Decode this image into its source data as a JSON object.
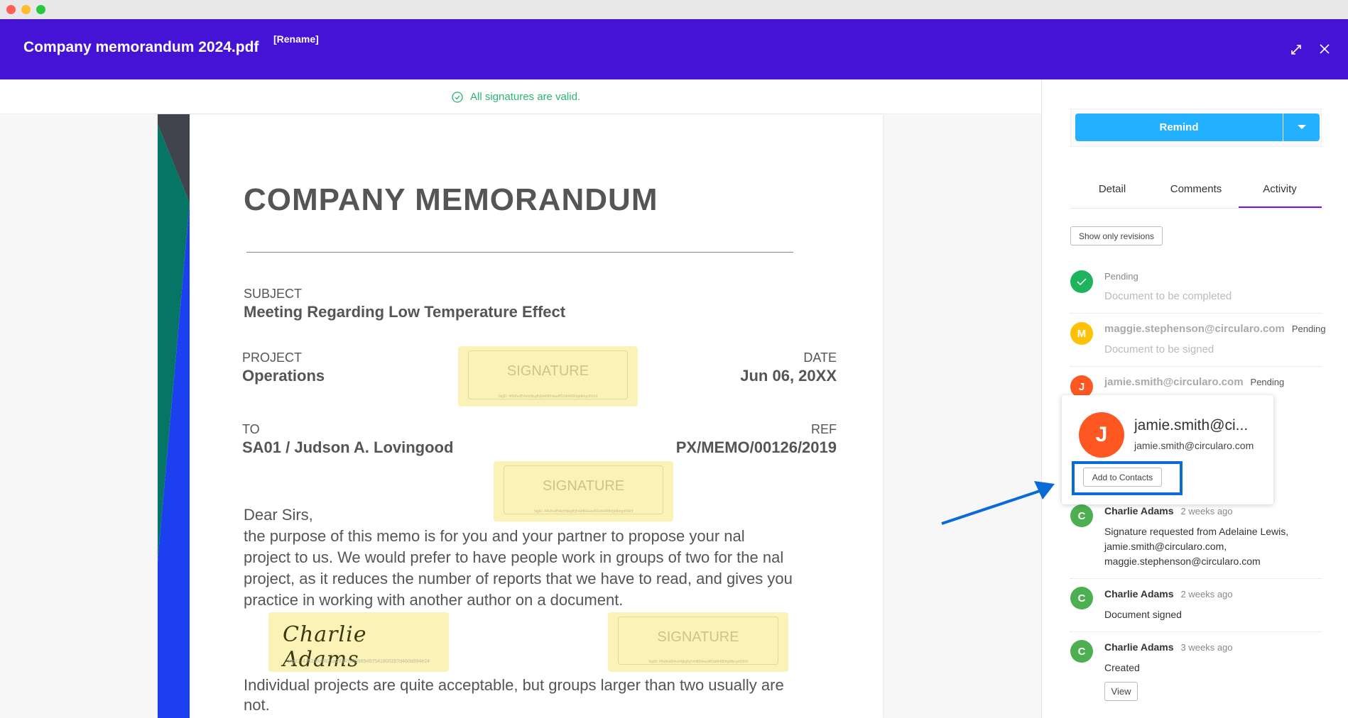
{
  "window": {
    "controls": [
      "close",
      "minimize",
      "maximize"
    ]
  },
  "header": {
    "title": "Company memorandum 2024.pdf",
    "rename_label": "[Rename]",
    "expand_icon": "expand-icon",
    "close_icon": "close-icon",
    "color": "#4513d6"
  },
  "status": {
    "text": "All signatures are valid.",
    "icon": "check-circle-icon",
    "color": "#2bb673"
  },
  "document": {
    "heading": "COMPANY MEMORANDUM",
    "subject_label": "SUBJECT",
    "subject": "Meeting Regarding Low Temperature Effect",
    "project_label": "PROJECT",
    "project": "Operations",
    "date_label": "DATE",
    "date": "Jun 06, 20XX",
    "to_label": "TO",
    "to": "SA01 / Judson A. Lovingood",
    "ref_label": "REF",
    "ref": "PX/MEMO/00126/2019",
    "greeting": "Dear Sirs,",
    "body_lines": [
      "the purpose of this memo is for you and your partner to propose your nal",
      "project to us. We would prefer to have people work in groups of two for the nal",
      "project, as it reduces the number of reports that we have to read, and gives you",
      "practice in working with another author on a document."
    ],
    "body2_lines": [
      "Individual projects are quite acceptable, but groups larger than two usually are",
      "not."
    ],
    "signature_placeholder": "SIGNATURE",
    "signature_id": "SigID: f45dfsdf54vhf4jkgfhj54df894asdf01bfd4884gfdbng455tr9",
    "signed_name": "Charlie Adams",
    "signed_id": "SigID: 475269a8821a28341e99969497541800287d460d994e24"
  },
  "sidebar": {
    "remind_label": "Remind",
    "tabs": [
      {
        "label": "Detail"
      },
      {
        "label": "Comments"
      },
      {
        "label": "Activity",
        "active": true
      }
    ],
    "revisions_label": "Show only revisions",
    "activity": [
      {
        "avatar": "check",
        "status": "Pending",
        "text": "Document to be completed",
        "color": "#1db45e"
      },
      {
        "avatar": "M",
        "name": "maggie.stephenson@circularo.com",
        "status": "Pending",
        "text": "Document to be signed",
        "color": "#ffc107"
      },
      {
        "avatar": "J",
        "name": "jamie.smith@circularo.com",
        "status": "Pending",
        "color": "#ff5722"
      },
      {
        "avatar": "C",
        "name": "Charlie Adams",
        "time": "2 weeks ago",
        "text_lines": [
          "Signature requested from Adelaine Lewis,",
          "jamie.smith@circularo.com,",
          "maggie.stephenson@circularo.com"
        ],
        "color": "#4caf50"
      },
      {
        "avatar": "C",
        "name": "Charlie Adams",
        "time": "2 weeks ago",
        "text": "Document signed",
        "color": "#4caf50"
      },
      {
        "avatar": "C",
        "name": "Charlie Adams",
        "time": "3 weeks ago",
        "text": "Created",
        "button": "View",
        "color": "#4caf50"
      }
    ],
    "popup": {
      "avatar": "J",
      "title": "jamie.smith@ci...",
      "email": "jamie.smith@circularo.com",
      "button": "Add to Contacts"
    }
  }
}
